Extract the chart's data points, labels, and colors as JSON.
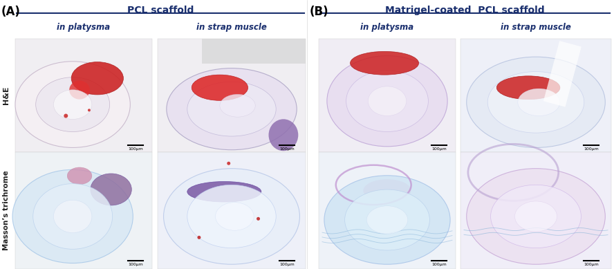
{
  "panel_A_label": "(A)",
  "panel_B_label": "(B)",
  "title_A": "PCL scaffold",
  "title_B": "Matrigel-coated  PCL scaffold",
  "col1_A": "in platysma",
  "col2_A": "in strap muscle",
  "col1_B": "in platysma",
  "col2_B": "in strap muscle",
  "row1_label": "H&E",
  "row2_label": "Masson’s trichrome",
  "title_color": "#1a2f6e",
  "col_label_color": "#1a2f6e",
  "panel_label_color": "#000000",
  "line_color": "#1a2f6e",
  "bg_color": "#ffffff",
  "scale_bar_text": "100μm",
  "figsize": [
    8.88,
    3.89
  ],
  "dpi": 100
}
